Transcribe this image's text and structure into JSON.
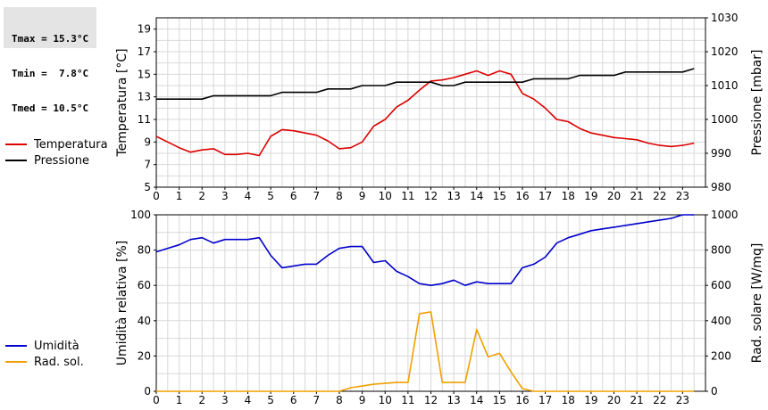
{
  "stats": {
    "tmax": "Tmax = 15.3°C",
    "tmin": "Tmin =  7.8°C",
    "tmed": "Tmed = 10.5°C"
  },
  "chart_data": [
    {
      "type": "line",
      "grid": true,
      "xlim": [
        0,
        24
      ],
      "x_ticks": [
        "0",
        "1",
        "2",
        "3",
        "4",
        "5",
        "6",
        "7",
        "8",
        "9",
        "10",
        "11",
        "12",
        "13",
        "14",
        "15",
        "16",
        "17",
        "18",
        "19",
        "20",
        "21",
        "22",
        "23"
      ],
      "ylabel_left": "Temperatura [°C]",
      "ylim_left": [
        5,
        20
      ],
      "y_ticks_left": [
        "5",
        "7",
        "9",
        "11",
        "13",
        "15",
        "17",
        "19"
      ],
      "ylabel_right": "Pressione [mbar]",
      "ylim_right": [
        980,
        1030
      ],
      "y_ticks_right": [
        "980",
        "990",
        "1000",
        "1010",
        "1020",
        "1030"
      ],
      "legend": "left",
      "series": [
        {
          "name": "Temperatura",
          "axis": "left",
          "color": "#dd0000",
          "x": [
            0,
            0.5,
            1,
            1.5,
            2,
            2.5,
            3,
            3.5,
            4,
            4.5,
            5,
            5.5,
            6,
            6.5,
            7,
            7.5,
            8,
            8.5,
            9,
            9.5,
            10,
            10.5,
            11,
            11.5,
            12,
            12.5,
            13,
            13.5,
            14,
            14.5,
            15,
            15.5,
            16,
            16.5,
            17,
            17.5,
            18,
            18.5,
            19,
            19.5,
            20,
            20.5,
            21,
            21.5,
            22,
            22.5,
            23,
            23.5
          ],
          "values": [
            9.5,
            9.0,
            8.5,
            8.1,
            8.3,
            8.4,
            7.9,
            7.9,
            8.0,
            7.8,
            9.5,
            10.1,
            10.0,
            9.8,
            9.6,
            9.1,
            8.4,
            8.5,
            9.0,
            10.4,
            11.0,
            12.1,
            12.7,
            13.6,
            14.4,
            14.5,
            14.7,
            15.0,
            15.3,
            14.9,
            15.3,
            15.0,
            13.3,
            12.8,
            12.0,
            11.0,
            10.8,
            10.2,
            9.8,
            9.6,
            9.4,
            9.3,
            9.2,
            8.9,
            8.7,
            8.6,
            8.7,
            8.9
          ]
        },
        {
          "name": "Pressione",
          "axis": "right",
          "color": "#000000",
          "x": [
            0,
            2,
            2.5,
            4,
            5,
            5.5,
            7,
            7.5,
            8.5,
            9,
            10,
            10.5,
            12,
            12.5,
            13,
            13.5,
            16,
            16.5,
            18,
            18.5,
            20,
            20.5,
            23,
            23.5
          ],
          "values": [
            1006,
            1006,
            1007,
            1007,
            1007,
            1008,
            1008,
            1009,
            1009,
            1010,
            1010,
            1011,
            1011,
            1010,
            1010,
            1011,
            1011,
            1012,
            1012,
            1013,
            1013,
            1014,
            1014,
            1015
          ]
        }
      ]
    },
    {
      "type": "line",
      "grid": true,
      "xlim": [
        0,
        24
      ],
      "x_ticks": [
        "0",
        "1",
        "2",
        "3",
        "4",
        "5",
        "6",
        "7",
        "8",
        "9",
        "10",
        "11",
        "12",
        "13",
        "14",
        "15",
        "16",
        "17",
        "18",
        "19",
        "20",
        "21",
        "22",
        "23"
      ],
      "ylabel_left": "Umidità relativa [%]",
      "ylim_left": [
        0,
        100
      ],
      "y_ticks_left": [
        "0",
        "20",
        "40",
        "60",
        "80",
        "100"
      ],
      "ylabel_right": "Rad. solare [W/mq]",
      "ylim_right": [
        0,
        1000
      ],
      "y_ticks_right": [
        "0",
        "200",
        "400",
        "600",
        "800",
        "1000"
      ],
      "legend": "left",
      "series": [
        {
          "name": "Umidità",
          "axis": "left",
          "color": "#0000cc",
          "x": [
            0,
            0.5,
            1,
            1.5,
            2,
            2.5,
            3,
            3.5,
            4,
            4.5,
            5,
            5.5,
            6,
            6.5,
            7,
            7.5,
            8,
            8.5,
            9,
            9.5,
            10,
            10.5,
            11,
            11.5,
            12,
            12.5,
            13,
            13.5,
            14,
            14.5,
            15,
            15.5,
            16,
            16.5,
            17,
            17.5,
            18,
            18.5,
            19,
            19.5,
            20,
            20.5,
            21,
            21.5,
            22,
            22.5,
            23,
            23.5
          ],
          "values": [
            79,
            81,
            83,
            86,
            87,
            84,
            86,
            86,
            86,
            87,
            77,
            70,
            71,
            72,
            72,
            77,
            81,
            82,
            82,
            73,
            74,
            68,
            65,
            61,
            60,
            61,
            63,
            60,
            62,
            61,
            61,
            61,
            70,
            72,
            76,
            84,
            87,
            89,
            91,
            92,
            93,
            94,
            95,
            96,
            97,
            98,
            100,
            100
          ]
        },
        {
          "name": "Rad. sol.",
          "axis": "right",
          "color": "#f0a000",
          "x": [
            0,
            1,
            2,
            3,
            4,
            5,
            6,
            7,
            8,
            8.5,
            9,
            9.5,
            10,
            10.5,
            11,
            11.5,
            12,
            12.5,
            13,
            13.5,
            14,
            14.5,
            15,
            15.5,
            16,
            16.5,
            17,
            18,
            19,
            20,
            21,
            22,
            23,
            23.5
          ],
          "values": [
            0,
            0,
            0,
            0,
            0,
            0,
            0,
            0,
            0,
            20,
            30,
            40,
            45,
            50,
            50,
            440,
            450,
            50,
            50,
            50,
            350,
            195,
            215,
            110,
            15,
            0,
            0,
            0,
            0,
            0,
            0,
            0,
            0,
            0
          ]
        }
      ]
    }
  ]
}
